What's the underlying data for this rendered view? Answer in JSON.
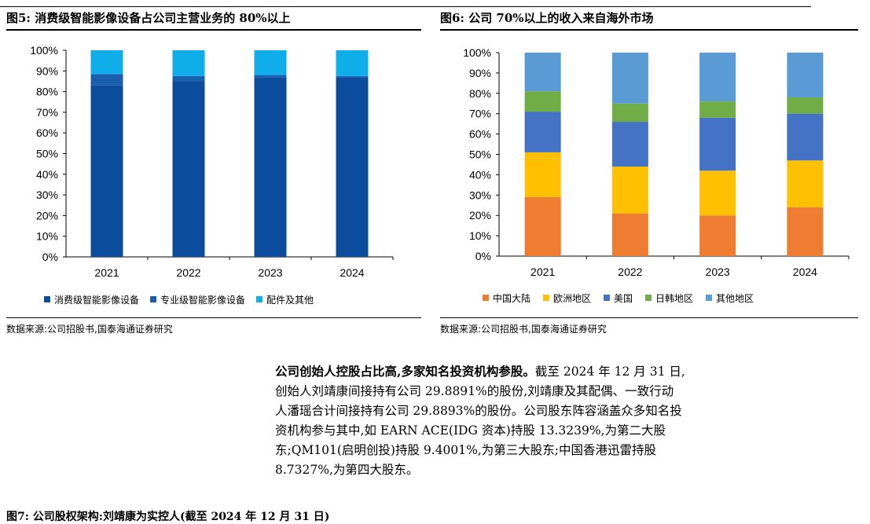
{
  "fig5": {
    "title": "图5: 消费级智能影像设备占公司主营业务的 80%以上",
    "source": "数据来源:公司招股书,国泰海通证券研究"
  },
  "fig6": {
    "title": "图6: 公司 70%以上的收入来自海外市场",
    "source": "数据来源:公司招股书,国泰海通证券研究"
  },
  "paragraph": {
    "lead": "公司创始人控股占比高,多家知名投资机构参股。",
    "lines": [
      "截至 2024 年 12 月 31 日,",
      "创始人刘靖康间接持有公司 29.8891%的股份,刘靖康及其配偶、一致行动",
      "人潘瑶合计间接持有公司 29.8893%的股份。公司股东阵容涵盖众多知名投",
      "资机构参与其中,如 EARN ACE(IDG 资本)持股 13.3239%,为第二大股",
      "东;QM101(启明创投)持股 9.4001%,为第三大股东;中国香港迅雷持股",
      "8.7327%,为第四大股东。"
    ]
  },
  "fig7": {
    "title": "图7: 公司股权架构:刘靖康为实控人(截至 2024 年 12 月 31 日)"
  },
  "chart_data": [
    {
      "type": "bar",
      "stacked": true,
      "categories": [
        "2021",
        "2022",
        "2023",
        "2024"
      ],
      "ylim": [
        0,
        100
      ],
      "yticks": [
        "0%",
        "10%",
        "20%",
        "30%",
        "40%",
        "50%",
        "60%",
        "70%",
        "80%",
        "90%",
        "100%"
      ],
      "legend_position": "bottom",
      "series": [
        {
          "name": "消费级智能影像设备",
          "color": "#0B4D9C",
          "values": [
            83,
            85,
            87,
            87
          ]
        },
        {
          "name": "专业级智能影像设备",
          "color": "#1A5EB0",
          "values": [
            5.5,
            2.5,
            1,
            0.5
          ]
        },
        {
          "name": "配件及其他",
          "color": "#0FAEEA",
          "values": [
            11.5,
            12.5,
            12,
            12.5
          ]
        }
      ]
    },
    {
      "type": "bar",
      "stacked": true,
      "categories": [
        "2021",
        "2022",
        "2023",
        "2024"
      ],
      "ylim": [
        0,
        100
      ],
      "yticks": [
        "0%",
        "10%",
        "20%",
        "30%",
        "40%",
        "50%",
        "60%",
        "70%",
        "80%",
        "90%",
        "100%"
      ],
      "legend_position": "bottom",
      "series": [
        {
          "name": "中国大陆",
          "color": "#EE7D31",
          "values": [
            29,
            21,
            20,
            24
          ]
        },
        {
          "name": "欧洲地区",
          "color": "#FEC000",
          "values": [
            22,
            23,
            22,
            23
          ]
        },
        {
          "name": "美国",
          "color": "#4472C4",
          "values": [
            20,
            22,
            26,
            23
          ]
        },
        {
          "name": "日韩地区",
          "color": "#70AD47",
          "values": [
            10,
            9,
            8,
            8
          ]
        },
        {
          "name": "其他地区",
          "color": "#5B9BD5",
          "values": [
            19,
            25,
            24,
            22
          ]
        }
      ]
    }
  ]
}
